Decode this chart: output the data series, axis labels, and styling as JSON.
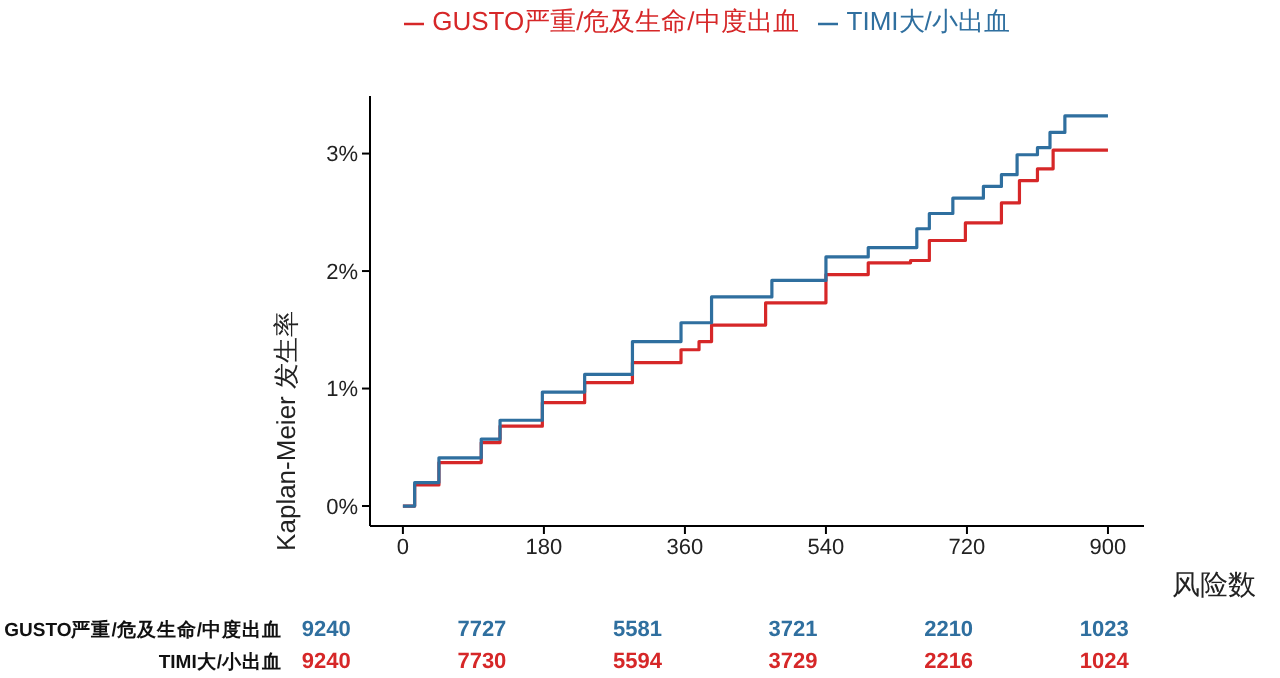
{
  "chart_data": {
    "type": "step",
    "ylabel": "Kaplan-Meier 发生率",
    "legend": "top",
    "grid": false,
    "xlim": [
      -42,
      946
    ],
    "xticks": [
      0,
      180,
      360,
      540,
      720,
      900
    ],
    "ylim": [
      -0.17,
      3.49
    ],
    "yticks": [
      {
        "value": 0,
        "label": "0%"
      },
      {
        "value": 1,
        "label": "1%"
      },
      {
        "value": 2,
        "label": "2%"
      },
      {
        "value": 3,
        "label": "3%"
      }
    ],
    "series": [
      {
        "name": "GUSTO严重/危及生命/中度出血",
        "color": "#d62728",
        "x": [
          0,
          15,
          46,
          100,
          124,
          178,
          232,
          293,
          355,
          378,
          394,
          463,
          540,
          594,
          648,
          672,
          718,
          764,
          787,
          810,
          830,
          900
        ],
        "values": [
          0,
          0.18,
          0.37,
          0.54,
          0.68,
          0.88,
          1.05,
          1.22,
          1.33,
          1.4,
          1.54,
          1.73,
          1.97,
          2.07,
          2.09,
          2.26,
          2.41,
          2.58,
          2.77,
          2.87,
          3.03,
          3.03
        ]
      },
      {
        "name": "TIMI大/小出血",
        "color": "#2f6f9f",
        "x": [
          0,
          15,
          46,
          100,
          124,
          178,
          232,
          293,
          355,
          394,
          471,
          540,
          594,
          656,
          672,
          702,
          741,
          764,
          784,
          810,
          826,
          845,
          900
        ],
        "values": [
          0,
          0.2,
          0.41,
          0.57,
          0.73,
          0.97,
          1.12,
          1.4,
          1.56,
          1.78,
          1.92,
          2.12,
          2.2,
          2.36,
          2.49,
          2.62,
          2.72,
          2.82,
          2.99,
          3.05,
          3.18,
          3.32,
          3.32
        ]
      }
    ],
    "annotations": [
      "风险数",
      "GUSTO严重/危及生命/中度出血",
      "9240",
      "7727",
      "5581",
      "3721",
      "2210",
      "1023",
      "TIMI大/小出血",
      "9240",
      "7730",
      "5594",
      "3729",
      "2216",
      "1024"
    ]
  }
}
